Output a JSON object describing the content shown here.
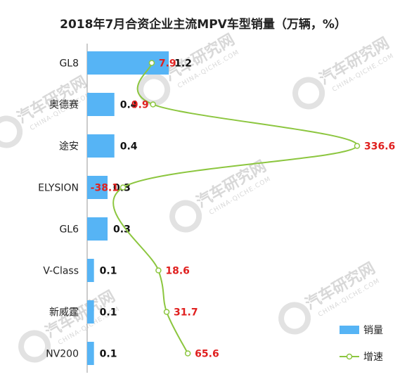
{
  "chart_data": {
    "type": "bar",
    "title": "2018年7月合资企业主流MPV车型销量（万辆，%）",
    "categories": [
      "GL8",
      "奥德赛",
      "途安",
      "ELYSION",
      "GL6",
      "V-Class",
      "新威霆",
      "NV200"
    ],
    "series": [
      {
        "name": "销量",
        "type": "bar",
        "values": [
          1.2,
          0.4,
          0.4,
          0.3,
          0.3,
          0.1,
          0.1,
          0.1
        ],
        "labels": [
          "1.2",
          "0.4",
          "0.4",
          "0.3",
          "0.3",
          "0.1",
          "0.1",
          "0.1"
        ]
      },
      {
        "name": "增速",
        "type": "line",
        "values": [
          7.9,
          9.9,
          336.6,
          -38.1,
          null,
          18.6,
          31.7,
          65.6
        ],
        "labels": [
          "7.9",
          "9.9",
          "336.6",
          "-38.1",
          "",
          "18.6",
          "31.7",
          "65.6"
        ]
      }
    ],
    "orientation": "horizontal",
    "legend": "bottom-right",
    "colors": {
      "bar": "#56b4f5",
      "line": "#8cc63f",
      "growth_label": "#e0201f"
    }
  },
  "watermark": {
    "text": "汽车研究网",
    "sub": "CHINA-QICHE.COM"
  }
}
